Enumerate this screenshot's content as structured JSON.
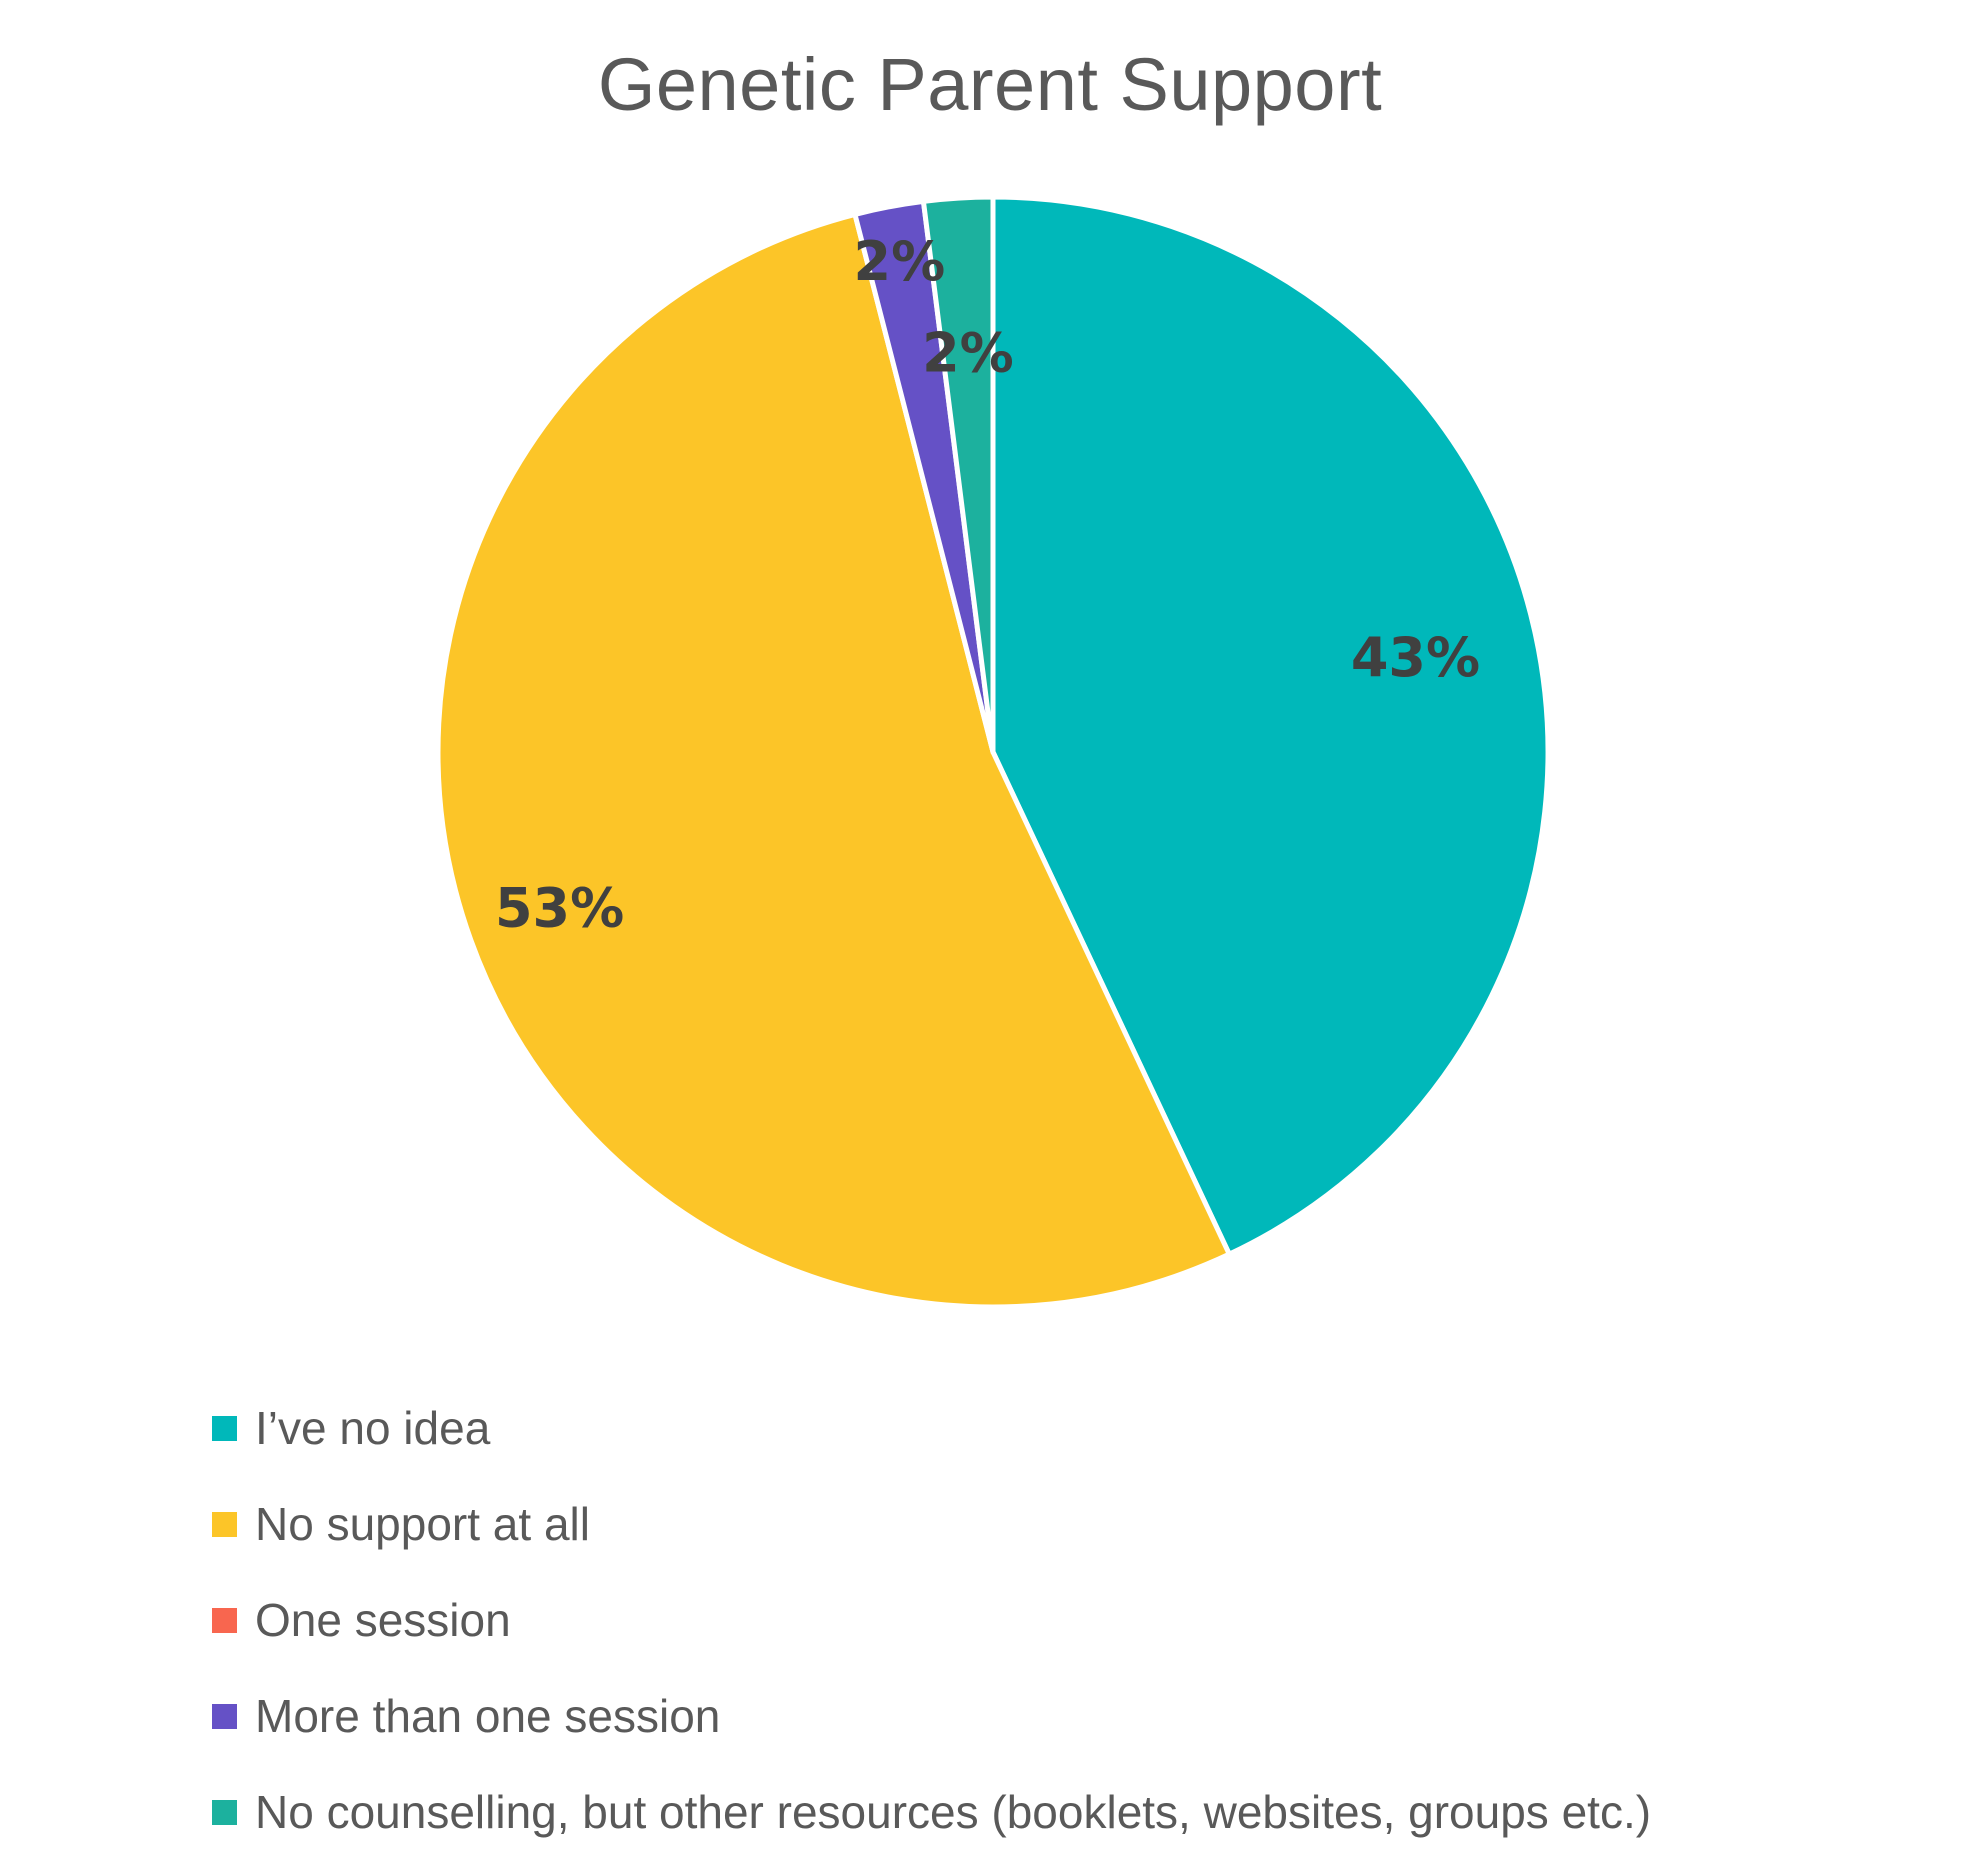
{
  "chart_data": {
    "type": "pie",
    "title": "Genetic Parent Support",
    "start_angle_deg": 0,
    "direction": "clockwise",
    "legend_position": "bottom-left",
    "slices": [
      {
        "label": "I’ve no idea",
        "value": 43,
        "display": "43%",
        "color": "#00B8BA"
      },
      {
        "label": "No support at all",
        "value": 53,
        "display": "53%",
        "color": "#FCC528"
      },
      {
        "label": "One session",
        "value": 0,
        "display": "",
        "color": "#F8664F"
      },
      {
        "label": "More than one session",
        "value": 2,
        "display": "2%",
        "color": "#6551C6"
      },
      {
        "label": "No counselling, but other resources (booklets, websites, groups etc.)",
        "value": 2,
        "display": "2%",
        "color": "#1CB19E"
      }
    ]
  }
}
